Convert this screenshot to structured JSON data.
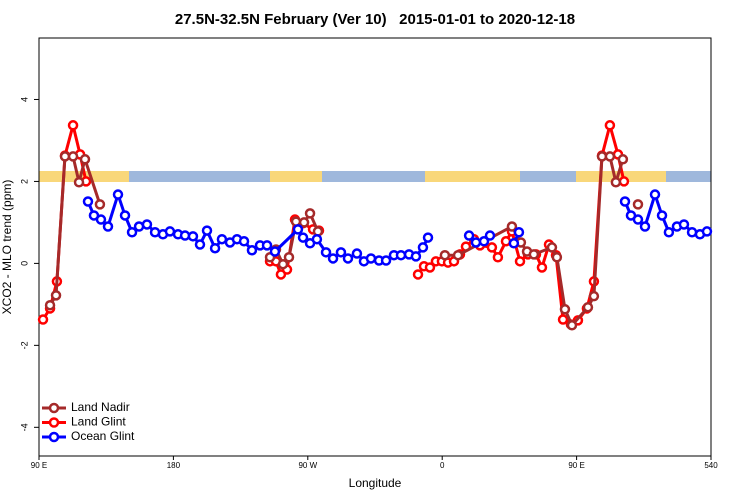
{
  "chart_data": {
    "type": "line",
    "title": "27.5N-32.5N February (Ver 10)   2015-01-01 to 2020-12-18",
    "xlabel": "Longitude",
    "ylabel": "XCO2 - MLO trend (ppm)",
    "xlim": [
      90,
      540
    ],
    "xticks": [
      {
        "value": 90,
        "label": "90 E"
      },
      180,
      {
        "value": 270,
        "label": "90 W"
      },
      {
        "value": 360,
        "label": "0"
      },
      {
        "value": 450,
        "label": "90 E"
      },
      540
    ],
    "ylim": [
      -4.7,
      5.5
    ],
    "yticks": [
      -4,
      -2,
      0,
      2,
      4
    ],
    "legend": "bottom-left",
    "series": [
      {
        "name": "Land Nadir",
        "color": "#a52a2a",
        "x": [
          97.4,
          101.4,
          107.4,
          112.8,
          116.8,
          120.8,
          130.8,
          null,
          244.7,
          248.7,
          253.4,
          257.4,
          262.1,
          267.5,
          271.5,
          276.8,
          null,
          361.8,
          370.6,
          406.7,
          412.7,
          416.8,
          421.4,
          433.5,
          436.8,
          442.2,
          446.9,
          457.6,
          461.6,
          467,
          472.3,
          476.3,
          481,
          null,
          491.1
        ],
        "values": [
          -1.02,
          -0.78,
          2.61,
          2.61,
          1.98,
          2.54,
          1.44,
          null,
          0.15,
          0.34,
          -0.02,
          0.15,
          1.02,
          1.0,
          1.22,
          0.78,
          null,
          0.2,
          0.2,
          0.9,
          0.51,
          0.29,
          0.22,
          0.39,
          0.15,
          -1.12,
          -1.51,
          -1.07,
          -0.8,
          2.61,
          2.61,
          1.98,
          2.54,
          null,
          1.44
        ]
      },
      {
        "name": "Land Glint",
        "color": "#ff0000",
        "x": [
          92.7,
          97.4,
          102,
          107.4,
          112.8,
          117.5,
          121.5,
          null,
          244.7,
          248.7,
          252,
          256.1,
          261.4,
          266.8,
          273.5,
          277.5,
          null,
          343.8,
          347.8,
          351.8,
          355.8,
          359.8,
          363.9,
          367.9,
          371.9,
          375.9,
          381.3,
          385.3,
          393.3,
          397.3,
          402.7,
          406.7,
          412.1,
          417.4,
          422.8,
          426.8,
          431.5,
          436.2,
          440.9,
          446.2,
          450.9,
          456.9,
          461.6,
          467,
          472.3,
          477.7,
          481.7
        ],
        "values": [
          -1.37,
          -1.1,
          -0.44,
          2.63,
          3.37,
          2.66,
          2.0,
          null,
          0.05,
          0.05,
          -0.27,
          -0.15,
          1.07,
          0.98,
          0.83,
          0.8,
          null,
          -0.27,
          -0.07,
          -0.1,
          0.05,
          0.05,
          0.02,
          0.05,
          0.22,
          0.41,
          0.59,
          0.44,
          0.39,
          0.15,
          0.54,
          0.78,
          0.05,
          0.22,
          0.22,
          -0.1,
          0.46,
          0.2,
          -1.37,
          -1.49,
          -1.39,
          -1.1,
          -0.44,
          2.63,
          3.37,
          2.66,
          2.0
        ]
      },
      {
        "name": "Ocean Glint",
        "color": "#0000ff",
        "x": [
          122.8,
          126.8,
          131.5,
          136.2,
          142.9,
          147.6,
          152.3,
          157,
          162.3,
          167.7,
          173,
          177.7,
          183.1,
          187.8,
          193.1,
          197.8,
          202.5,
          207.9,
          212.5,
          217.9,
          222.6,
          227.3,
          232.6,
          238,
          242.7,
          248,
          263.4,
          266.8,
          271.5,
          276.1,
          282.2,
          286.9,
          292.2,
          296.9,
          302.9,
          307.6,
          312.3,
          317.7,
          322.4,
          327.7,
          332.4,
          337.8,
          342.4,
          347.1,
          350.5,
          null,
          378,
          382.6,
          388,
          392,
          null,
          408,
          411.4,
          null,
          482.4,
          486.4,
          491.1,
          495.8,
          502.5,
          507.2,
          511.8,
          517.2,
          521.9,
          527.3,
          532.6,
          537.3
        ],
        "values": [
          1.51,
          1.17,
          1.07,
          0.9,
          1.68,
          1.17,
          0.76,
          0.9,
          0.95,
          0.76,
          0.71,
          0.78,
          0.71,
          0.68,
          0.66,
          0.46,
          0.8,
          0.37,
          0.59,
          0.51,
          0.59,
          0.54,
          0.32,
          0.44,
          0.44,
          0.29,
          0.83,
          0.63,
          0.49,
          0.59,
          0.27,
          0.12,
          0.27,
          0.12,
          0.24,
          0.05,
          0.12,
          0.07,
          0.07,
          0.2,
          0.2,
          0.22,
          0.17,
          0.39,
          0.63,
          null,
          0.68,
          0.51,
          0.54,
          0.68,
          null,
          0.49,
          0.76,
          null,
          1.51,
          1.17,
          1.07,
          0.9,
          1.68,
          1.17,
          0.76,
          0.9,
          0.95,
          0.76,
          0.71,
          0.78
        ]
      }
    ]
  }
}
